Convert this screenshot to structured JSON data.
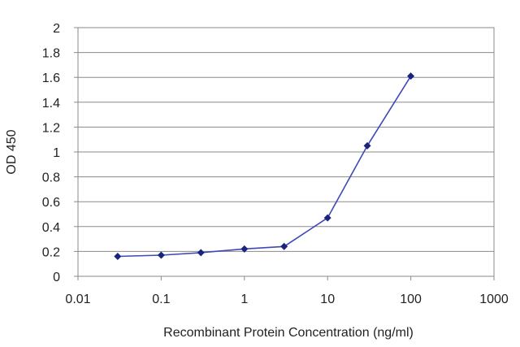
{
  "chart_data": {
    "type": "line",
    "title": "",
    "xlabel": "Recombinant Protein Concentration (ng/ml)",
    "ylabel": "OD 450",
    "x_scale": "log",
    "xlim": [
      0.01,
      1000
    ],
    "ylim": [
      0,
      2
    ],
    "x_ticks": [
      "0.01",
      "0.1",
      "1",
      "10",
      "100",
      "1000"
    ],
    "y_ticks": [
      "0",
      "0.2",
      "0.4",
      "0.6",
      "0.8",
      "1",
      "1.2",
      "1.4",
      "1.6",
      "1.8",
      "2"
    ],
    "grid": "horizontal",
    "legend": "none",
    "series": [
      {
        "color": "#3f48b8",
        "marker_color": "#1a237e",
        "x": [
          0.03,
          0.1,
          0.3,
          1,
          3,
          10,
          30,
          100
        ],
        "y": [
          0.16,
          0.17,
          0.19,
          0.22,
          0.24,
          0.47,
          1.05,
          1.61
        ]
      }
    ]
  }
}
